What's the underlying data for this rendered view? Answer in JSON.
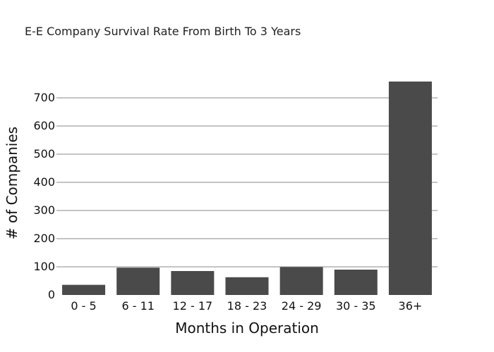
{
  "chart_data": {
    "type": "bar",
    "title": "E-E Company Survival Rate From Birth To 3 Years",
    "xlabel": "Months in Operation",
    "ylabel": "# of Companies",
    "categories": [
      "0 - 5",
      "6 - 11",
      "12 - 17",
      "18 - 23",
      "24 - 29",
      "30 - 35",
      "36+"
    ],
    "values": [
      36,
      97,
      85,
      63,
      99,
      90,
      758
    ],
    "ylim": [
      0,
      760
    ],
    "yticks": [
      0,
      100,
      200,
      300,
      400,
      500,
      600,
      700
    ],
    "grid": true,
    "legend": "none",
    "bar_color": "#4a4a4a",
    "grid_color": "#8a8a8a"
  }
}
